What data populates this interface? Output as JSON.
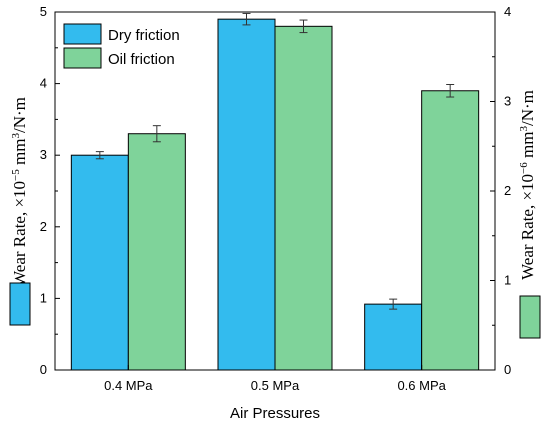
{
  "chart_data": {
    "type": "bar",
    "categories": [
      "0.4 MPa",
      "0.5 MPa",
      "0.6 MPa"
    ],
    "xlabel": "Air Pressures",
    "ylabel_left": {
      "prefix": "Wear Rate, ×10",
      "exp": "−5",
      "unit": " mm",
      "unit_exp": "3",
      "suffix": "/N·m"
    },
    "ylabel_right": {
      "prefix": "Wear Rate, ×10",
      "exp": "−6",
      "unit": " mm",
      "unit_exp": "3",
      "suffix": "/N·m"
    },
    "ylim_left": [
      0,
      5
    ],
    "ylim_right": [
      0,
      4
    ],
    "yticks_left": [
      "0",
      "1",
      "2",
      "3",
      "4",
      "5"
    ],
    "yticks_right": [
      "0",
      "1",
      "2",
      "3",
      "4"
    ],
    "legend_position": "top-left",
    "series": [
      {
        "name": "Dry friction",
        "axis": "left",
        "color": "#33bbee",
        "values": [
          3.0,
          4.9,
          0.92
        ],
        "errors": [
          0.05,
          0.08,
          0.07
        ]
      },
      {
        "name": "Oil friction",
        "axis": "right",
        "color": "#7fd39a",
        "values": [
          2.64,
          3.84,
          3.12
        ],
        "errors": [
          0.09,
          0.07,
          0.07
        ]
      }
    ]
  }
}
